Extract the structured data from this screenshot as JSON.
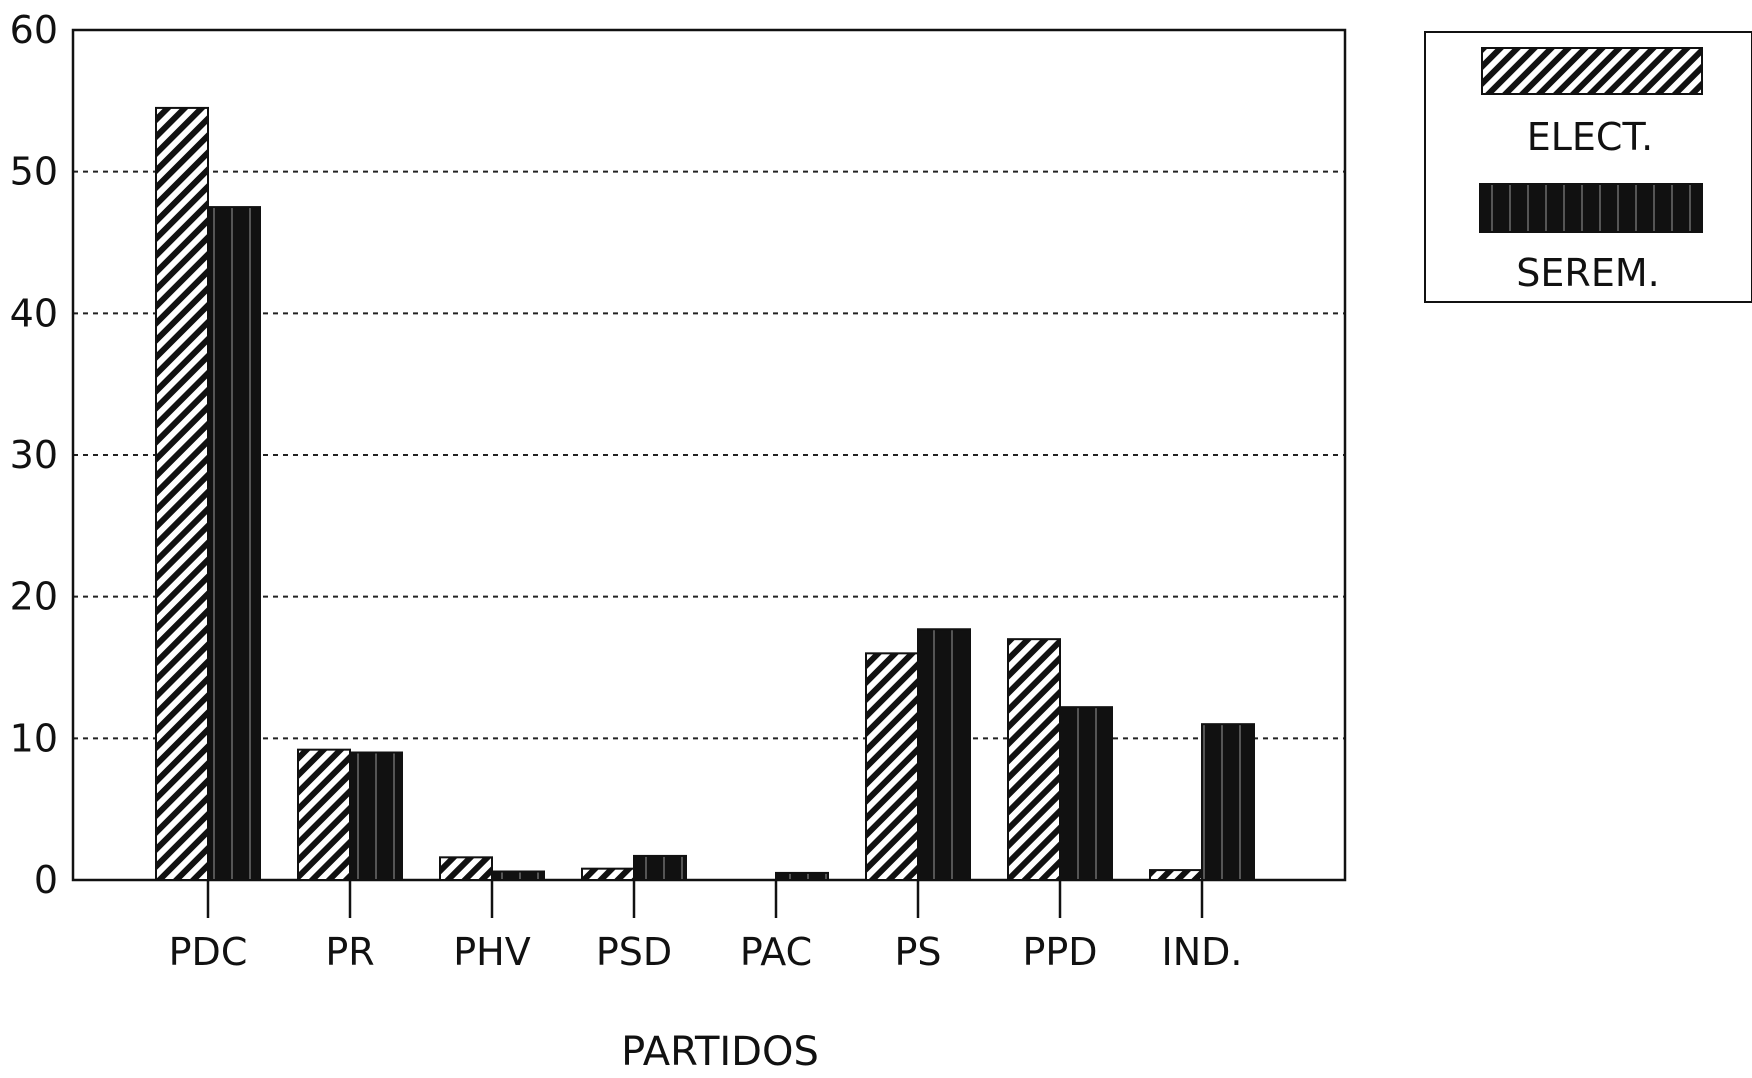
{
  "chart_data": {
    "type": "bar",
    "xlabel": "PARTIDOS",
    "ylabel": "",
    "ylim": [
      0,
      60
    ],
    "yticks": [
      0,
      10,
      20,
      30,
      40,
      50,
      60
    ],
    "grid": true,
    "legend_position": "top-right",
    "categories": [
      "PDC",
      "PR",
      "PHV",
      "PSD",
      "PAC",
      "PS",
      "PPD",
      "IND."
    ],
    "series": [
      {
        "name": "ELECT.",
        "pattern": "hatched",
        "color": "#111111",
        "values": [
          54.5,
          9.2,
          1.6,
          0.8,
          0,
          16,
          17,
          0.7
        ]
      },
      {
        "name": "SEREM.",
        "pattern": "solid",
        "color": "#111111",
        "values": [
          47.5,
          9,
          0.6,
          1.7,
          0.5,
          17.7,
          12.2,
          11
        ]
      }
    ]
  }
}
